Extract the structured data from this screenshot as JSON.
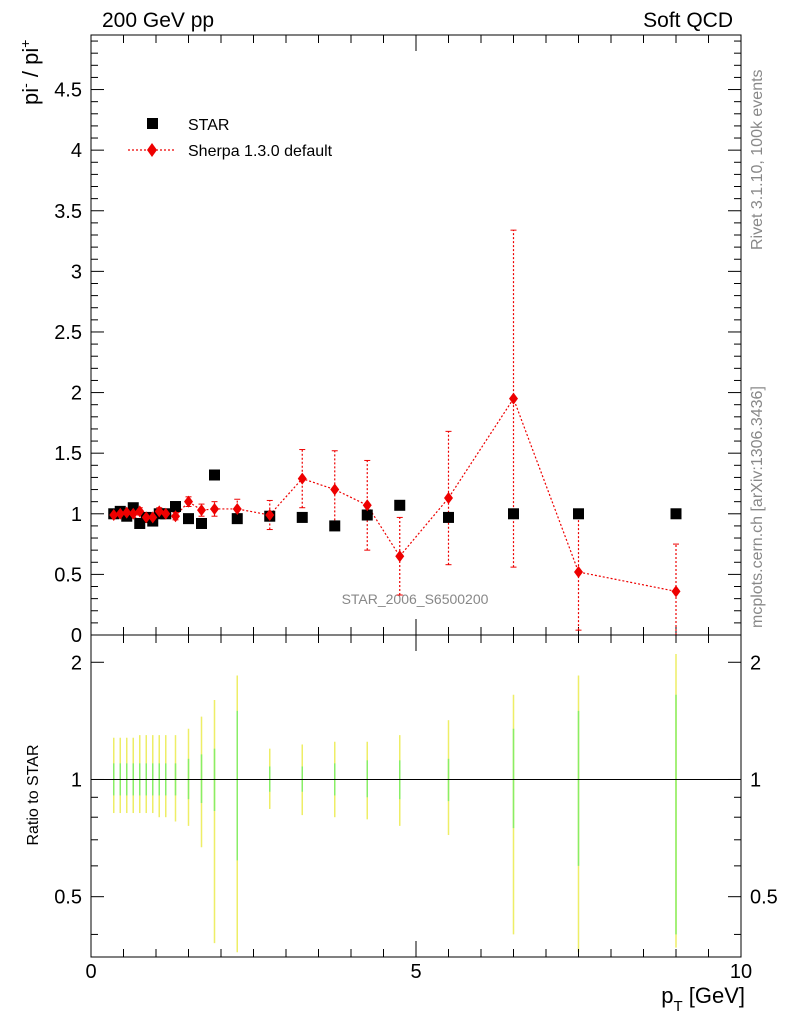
{
  "header": {
    "left": "200 GeV pp",
    "right": "Soft QCD"
  },
  "side_labels": {
    "rivet": "Rivet 3.1.10,  100k events",
    "mcplots": "mcplots.cern.ch [arXiv:1306.3436]"
  },
  "watermark": "STAR_2006_S6500200",
  "chart_data": [
    {
      "type": "scatter",
      "panel": "main",
      "ylabel_main": "pi",
      "ylabel_sup1": "-",
      "ylabel_sep": " / pi",
      "ylabel_sup2": "+",
      "xlim": [
        0,
        10
      ],
      "ylim": [
        0,
        4.95
      ],
      "y_ticks": [
        "0",
        "0.5",
        "1",
        "1.5",
        "2",
        "2.5",
        "3",
        "3.5",
        "4",
        "4.5"
      ],
      "legend_position": "top-left",
      "series": [
        {
          "name": "STAR",
          "color": "#000000",
          "marker": "square",
          "x": [
            0.35,
            0.45,
            0.55,
            0.65,
            0.75,
            0.85,
            0.95,
            1.05,
            1.15,
            1.3,
            1.5,
            1.7,
            1.9,
            2.25,
            2.75,
            3.25,
            3.75,
            4.25,
            4.75,
            5.5,
            6.5,
            7.5,
            9.0
          ],
          "y": [
            1.0,
            1.02,
            0.98,
            1.05,
            0.92,
            0.97,
            0.94,
            1.0,
            1.0,
            1.06,
            0.96,
            0.92,
            1.32,
            0.96,
            0.98,
            0.97,
            0.9,
            0.99,
            1.07,
            0.97,
            1.0,
            1.0,
            1.0
          ]
        },
        {
          "name": "Sherpa 1.3.0 default",
          "color": "#ee0000",
          "marker": "diamond",
          "line": "dotted",
          "x": [
            0.35,
            0.45,
            0.55,
            0.65,
            0.75,
            0.85,
            0.95,
            1.05,
            1.15,
            1.3,
            1.5,
            1.7,
            1.9,
            2.25,
            2.75,
            3.25,
            3.75,
            4.25,
            4.75,
            5.5,
            6.5,
            7.5,
            9.0
          ],
          "y": [
            0.99,
            1.0,
            1.01,
            1.0,
            1.02,
            0.97,
            0.97,
            1.02,
            1.0,
            0.98,
            1.1,
            1.03,
            1.04,
            1.04,
            0.99,
            1.29,
            1.2,
            1.07,
            0.65,
            1.13,
            1.95,
            0.52,
            0.36
          ],
          "err": [
            0.03,
            0.03,
            0.03,
            0.03,
            0.03,
            0.03,
            0.03,
            0.03,
            0.03,
            0.03,
            0.04,
            0.05,
            0.06,
            0.08,
            0.12,
            0.24,
            0.32,
            0.37,
            0.32,
            0.55,
            1.39,
            0.48,
            0.39
          ]
        }
      ]
    },
    {
      "type": "line",
      "panel": "ratio",
      "ylabel": "Ratio to STAR",
      "xlabel_main": "p",
      "xlabel_sub": "T",
      "xlabel_unit": " [GeV]",
      "xlim": [
        0,
        10
      ],
      "ylim": [
        0.35,
        2.35
      ],
      "y_scale": "log",
      "y_ticks": [
        "0.5",
        "1",
        "2"
      ],
      "x_ticks": [
        "0",
        "5",
        "10"
      ],
      "reference": 1.0,
      "band_colors": {
        "inner": "#88ee66",
        "outer": "#eeee66"
      },
      "x": [
        0.35,
        0.45,
        0.55,
        0.65,
        0.75,
        0.85,
        0.95,
        1.05,
        1.15,
        1.3,
        1.5,
        1.7,
        1.9,
        2.25,
        2.75,
        3.25,
        3.75,
        4.25,
        4.75,
        5.5,
        6.5,
        7.5,
        9.0
      ],
      "inner": [
        [
          0.91,
          1.1
        ],
        [
          0.91,
          1.1
        ],
        [
          0.91,
          1.1
        ],
        [
          0.91,
          1.1
        ],
        [
          0.91,
          1.1
        ],
        [
          0.91,
          1.1
        ],
        [
          0.91,
          1.1
        ],
        [
          0.91,
          1.1
        ],
        [
          0.91,
          1.1
        ],
        [
          0.91,
          1.1
        ],
        [
          0.89,
          1.13
        ],
        [
          0.87,
          1.16
        ],
        [
          0.83,
          1.2
        ],
        [
          0.62,
          1.5
        ],
        [
          0.93,
          1.08
        ],
        [
          0.93,
          1.08
        ],
        [
          0.91,
          1.1
        ],
        [
          0.9,
          1.12
        ],
        [
          0.89,
          1.12
        ],
        [
          0.88,
          1.13
        ],
        [
          0.75,
          1.35
        ],
        [
          0.6,
          1.5
        ],
        [
          0.4,
          1.65
        ]
      ],
      "outer": [
        [
          0.82,
          1.28
        ],
        [
          0.82,
          1.28
        ],
        [
          0.82,
          1.28
        ],
        [
          0.82,
          1.28
        ],
        [
          0.82,
          1.3
        ],
        [
          0.82,
          1.3
        ],
        [
          0.82,
          1.3
        ],
        [
          0.8,
          1.3
        ],
        [
          0.8,
          1.3
        ],
        [
          0.78,
          1.3
        ],
        [
          0.76,
          1.35
        ],
        [
          0.67,
          1.45
        ],
        [
          0.38,
          1.6
        ],
        [
          0.36,
          1.85
        ],
        [
          0.84,
          1.2
        ],
        [
          0.81,
          1.23
        ],
        [
          0.8,
          1.25
        ],
        [
          0.79,
          1.25
        ],
        [
          0.76,
          1.3
        ],
        [
          0.72,
          1.42
        ],
        [
          0.4,
          1.65
        ],
        [
          0.36,
          1.85
        ],
        [
          0.37,
          2.1
        ]
      ]
    }
  ]
}
